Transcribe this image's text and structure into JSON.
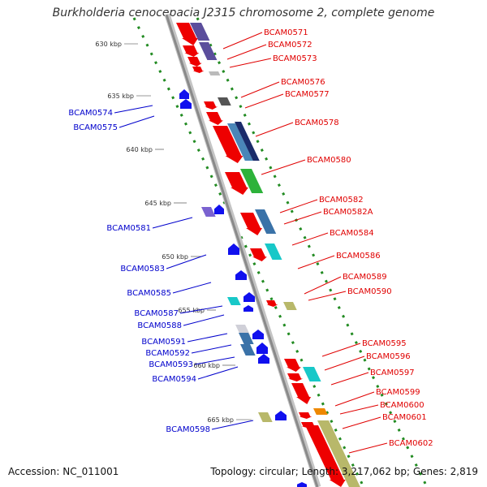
{
  "title": "Burkholderia cenocepacia J2315 chromosome 2, complete genome",
  "footer": {
    "accession": "Accession: NC_011001",
    "summary": "Topology: circular; Length: 3,217,062 bp; Genes: 2,819"
  },
  "colors": {
    "backbone": "#999999",
    "scale_ticks": "#228b22",
    "forward_label": "#e00000",
    "reverse_label": "#0000cc"
  },
  "scale_labels": [
    "630 kbp",
    "635 kbp",
    "640 kbp",
    "645 kbp",
    "650 kbp",
    "655 kbp",
    "660 kbp",
    "665 kbp"
  ],
  "forward_genes": [
    "BCAM0571",
    "BCAM0572",
    "BCAM0573",
    "BCAM0576",
    "BCAM0577",
    "BCAM0578",
    "BCAM0580",
    "BCAM0582",
    "BCAM0582A",
    "BCAM0584",
    "BCAM0586",
    "BCAM0589",
    "BCAM0590",
    "BCAM0595",
    "BCAM0596",
    "BCAM0597",
    "BCAM0599",
    "BCAM0600",
    "BCAM0601",
    "BCAM0602"
  ],
  "reverse_genes": [
    "BCAM0574",
    "BCAM0575",
    "BCAM0581",
    "BCAM0583",
    "BCAM0585",
    "BCAM0587",
    "BCAM0588",
    "BCAM0591",
    "BCAM0592",
    "BCAM0593",
    "BCAM0594",
    "BCAM0598"
  ]
}
